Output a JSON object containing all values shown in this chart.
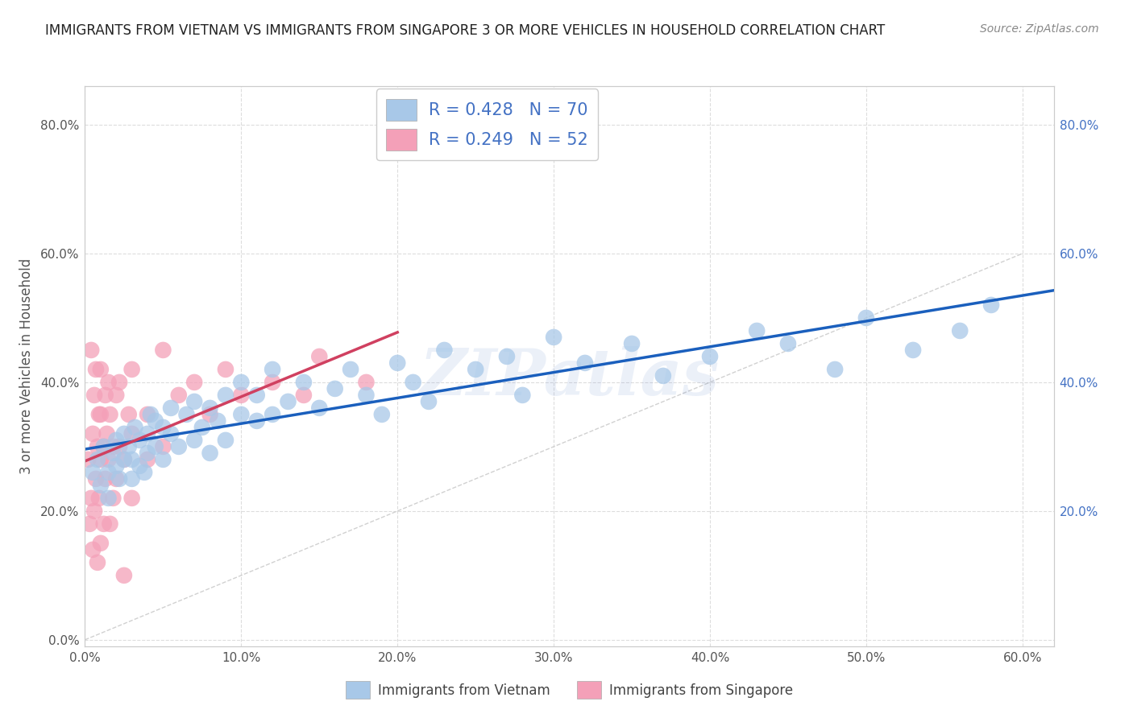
{
  "title": "IMMIGRANTS FROM VIETNAM VS IMMIGRANTS FROM SINGAPORE 3 OR MORE VEHICLES IN HOUSEHOLD CORRELATION CHART",
  "source": "Source: ZipAtlas.com",
  "ylabel": "3 or more Vehicles in Household",
  "legend_label1": "Immigrants from Vietnam",
  "legend_label2": "Immigrants from Singapore",
  "R1": 0.428,
  "N1": 70,
  "R2": 0.249,
  "N2": 52,
  "color1": "#a8c8e8",
  "color2": "#f4a0b8",
  "line_color1": "#1a5fbd",
  "line_color2": "#d04060",
  "diagonal_color": "#cccccc",
  "xlim": [
    0.0,
    0.62
  ],
  "ylim": [
    -0.01,
    0.86
  ],
  "xtick_labels": [
    "0.0%",
    "10.0%",
    "20.0%",
    "30.0%",
    "40.0%",
    "50.0%",
    "60.0%"
  ],
  "ytick_labels": [
    "0.0%",
    "20.0%",
    "40.0%",
    "60.0%",
    "80.0%"
  ],
  "xtick_values": [
    0.0,
    0.1,
    0.2,
    0.3,
    0.4,
    0.5,
    0.6
  ],
  "ytick_values": [
    0.0,
    0.2,
    0.4,
    0.6,
    0.8
  ],
  "right_ytick_labels": [
    "20.0%",
    "40.0%",
    "60.0%",
    "80.0%"
  ],
  "right_ytick_values": [
    0.2,
    0.4,
    0.6,
    0.8
  ],
  "vietnam_x": [
    0.005,
    0.008,
    0.01,
    0.012,
    0.015,
    0.015,
    0.018,
    0.02,
    0.02,
    0.022,
    0.025,
    0.025,
    0.028,
    0.03,
    0.03,
    0.032,
    0.035,
    0.035,
    0.038,
    0.04,
    0.04,
    0.042,
    0.045,
    0.045,
    0.05,
    0.05,
    0.055,
    0.055,
    0.06,
    0.065,
    0.07,
    0.07,
    0.075,
    0.08,
    0.08,
    0.085,
    0.09,
    0.09,
    0.1,
    0.1,
    0.11,
    0.11,
    0.12,
    0.12,
    0.13,
    0.14,
    0.15,
    0.16,
    0.17,
    0.18,
    0.19,
    0.2,
    0.21,
    0.22,
    0.23,
    0.25,
    0.27,
    0.28,
    0.3,
    0.32,
    0.35,
    0.37,
    0.4,
    0.43,
    0.45,
    0.48,
    0.5,
    0.53,
    0.56,
    0.58
  ],
  "vietnam_y": [
    0.26,
    0.28,
    0.24,
    0.3,
    0.22,
    0.26,
    0.29,
    0.27,
    0.31,
    0.25,
    0.32,
    0.28,
    0.3,
    0.25,
    0.28,
    0.33,
    0.27,
    0.31,
    0.26,
    0.32,
    0.29,
    0.35,
    0.3,
    0.34,
    0.28,
    0.33,
    0.32,
    0.36,
    0.3,
    0.35,
    0.31,
    0.37,
    0.33,
    0.36,
    0.29,
    0.34,
    0.38,
    0.31,
    0.35,
    0.4,
    0.34,
    0.38,
    0.42,
    0.35,
    0.37,
    0.4,
    0.36,
    0.39,
    0.42,
    0.38,
    0.35,
    0.43,
    0.4,
    0.37,
    0.45,
    0.42,
    0.44,
    0.38,
    0.47,
    0.43,
    0.46,
    0.41,
    0.44,
    0.48,
    0.46,
    0.42,
    0.5,
    0.45,
    0.48,
    0.52
  ],
  "singapore_x": [
    0.002,
    0.003,
    0.004,
    0.004,
    0.005,
    0.005,
    0.006,
    0.006,
    0.007,
    0.007,
    0.008,
    0.008,
    0.009,
    0.009,
    0.01,
    0.01,
    0.01,
    0.01,
    0.012,
    0.012,
    0.013,
    0.013,
    0.014,
    0.015,
    0.015,
    0.016,
    0.016,
    0.018,
    0.018,
    0.02,
    0.02,
    0.022,
    0.022,
    0.025,
    0.025,
    0.028,
    0.03,
    0.03,
    0.03,
    0.04,
    0.04,
    0.05,
    0.05,
    0.06,
    0.07,
    0.08,
    0.09,
    0.1,
    0.12,
    0.14,
    0.15,
    0.18
  ],
  "singapore_y": [
    0.28,
    0.18,
    0.45,
    0.22,
    0.32,
    0.14,
    0.38,
    0.2,
    0.25,
    0.42,
    0.3,
    0.12,
    0.35,
    0.22,
    0.42,
    0.28,
    0.15,
    0.35,
    0.3,
    0.18,
    0.38,
    0.25,
    0.32,
    0.28,
    0.4,
    0.18,
    0.35,
    0.3,
    0.22,
    0.38,
    0.25,
    0.4,
    0.3,
    0.28,
    0.1,
    0.35,
    0.32,
    0.22,
    0.42,
    0.35,
    0.28,
    0.3,
    0.45,
    0.38,
    0.4,
    0.35,
    0.42,
    0.38,
    0.4,
    0.38,
    0.44,
    0.4
  ],
  "watermark_text": "ZIPatlas",
  "background_color": "#ffffff",
  "grid_color": "#dddddd",
  "title_fontsize": 12,
  "source_fontsize": 10,
  "tick_fontsize": 11,
  "ylabel_fontsize": 12,
  "scatter_size": 220,
  "scatter_alpha": 0.75
}
